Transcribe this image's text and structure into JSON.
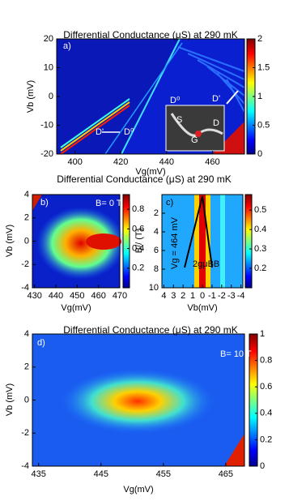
{
  "chart_data": [
    {
      "type": "heatmap",
      "title": "Differential Conductance (μS) at 290 mK",
      "xlabel": "Vg(mV)",
      "ylabel": "Vb (mV)",
      "xlim": [
        392,
        474
      ],
      "ylim": [
        -20,
        20
      ],
      "xticks": [
        400,
        420,
        440,
        460
      ],
      "yticks": [
        -20,
        -10,
        0,
        10,
        20
      ],
      "colorbar": {
        "lim": [
          0,
          2
        ],
        "ticks": [
          0,
          0.5,
          1,
          1.5,
          2
        ]
      },
      "annotations": [
        "a)",
        "D'",
        "D⁰",
        "D'",
        "D⁰",
        "S",
        "G",
        "D"
      ]
    },
    {
      "type": "heatmap",
      "title": "Differential Conductance (μS) at 290 mK",
      "xlabel": "Vg(mV)",
      "ylabel": "Vb (mV)",
      "xlim": [
        429,
        470
      ],
      "ylim": [
        -4,
        4
      ],
      "xticks": [
        430,
        440,
        450,
        460,
        470
      ],
      "yticks": [
        -4,
        -2,
        0,
        2,
        4
      ],
      "colorbar": {
        "lim": [
          0,
          0.95
        ],
        "ticks": [
          0.2,
          0.4,
          0.6,
          0.8
        ]
      },
      "annotations": [
        "b)",
        "B= 0 T"
      ]
    },
    {
      "type": "heatmap",
      "xlabel": "Vb(mV)",
      "ylabel": "B// (T)",
      "xlim": [
        4.2,
        -4.2
      ],
      "ylim": [
        10,
        0
      ],
      "xticks": [
        4,
        3,
        2,
        1,
        0,
        -1,
        -2,
        -3,
        -4
      ],
      "yticks": [
        2,
        4,
        6,
        8,
        10
      ],
      "colorbar": {
        "lim": [
          0.1,
          0.58
        ],
        "ticks": [
          0.2,
          0.3,
          0.4,
          0.5
        ]
      },
      "annotations": [
        "c)",
        "Vg = 464 mV",
        "2gμBB"
      ]
    },
    {
      "type": "heatmap",
      "title": "Differential Conductance (μS) at 290 mK",
      "xlabel": "Vg(mV)",
      "ylabel": "Vb (mV)",
      "xlim": [
        434,
        468
      ],
      "ylim": [
        -4,
        4
      ],
      "xticks": [
        435,
        445,
        455,
        465
      ],
      "yticks": [
        -4,
        -2,
        0,
        2,
        4
      ],
      "colorbar": {
        "lim": [
          0,
          1
        ],
        "ticks": [
          0,
          0.2,
          0.4,
          0.6,
          0.8,
          1
        ]
      },
      "annotations": [
        "d)",
        "B= 10 T"
      ]
    }
  ]
}
